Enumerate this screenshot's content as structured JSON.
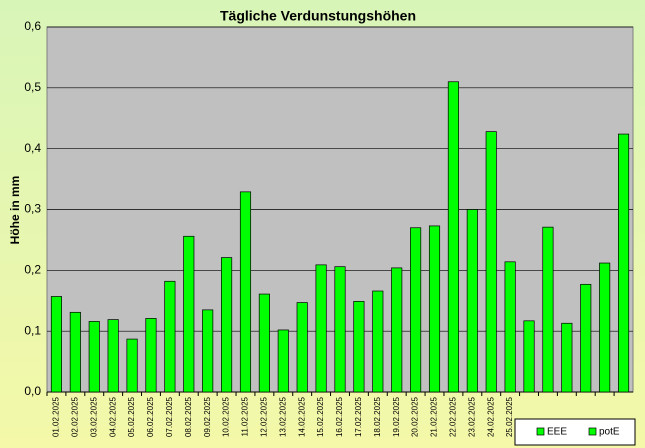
{
  "chart_data": {
    "type": "bar",
    "title": "Tägliche Verdunstungshöhen",
    "y_label": "Höhe in mm",
    "categories": [
      "01.02.2025",
      "02.02.2025",
      "03.02.2025",
      "04.02.2025",
      "05.02.2025",
      "06.02.2025",
      "07.02.2025",
      "08.02.2025",
      "09.02.2025",
      "10.02.2025",
      "11.02.2025",
      "12.02.2025",
      "13.02.2025",
      "14.02.2025",
      "15.02.2025",
      "16.02.2025",
      "17.02.2025",
      "18.02.2025",
      "19.02.2025",
      "20.02.2025",
      "21.02.2025",
      "22.02.2025",
      "23.02.2025",
      "24.02.2025",
      "25.02.2025",
      null,
      null,
      null,
      null,
      null,
      null
    ],
    "series": [
      {
        "name": "EEE",
        "color": "#00ff00",
        "values": [
          null,
          null,
          null,
          null,
          null,
          null,
          null,
          null,
          null,
          null,
          null,
          null,
          null,
          null,
          null,
          null,
          null,
          null,
          null,
          null,
          null,
          null,
          null,
          null,
          null,
          null,
          null,
          null,
          null,
          null,
          null
        ]
      },
      {
        "name": "potE",
        "color": "#00ff00",
        "values": [
          0.157,
          0.131,
          0.116,
          0.119,
          0.087,
          0.121,
          0.182,
          0.256,
          0.135,
          0.221,
          0.329,
          0.161,
          0.102,
          0.147,
          0.209,
          0.206,
          0.149,
          0.166,
          0.204,
          0.27,
          0.273,
          0.51,
          0.3,
          0.428,
          0.214,
          0.117,
          0.271,
          0.113,
          0.177,
          0.212,
          0.424
        ]
      }
    ],
    "ylim": [
      0,
      0.6
    ],
    "yticks": [
      {
        "value": 0,
        "label": "0,0"
      },
      {
        "value": 0.1,
        "label": "0,1"
      },
      {
        "value": 0.2,
        "label": "0,2"
      },
      {
        "value": 0.3,
        "label": "0,3"
      },
      {
        "value": 0.4,
        "label": "0,4"
      },
      {
        "value": 0.5,
        "label": "0,5"
      },
      {
        "value": 0.6,
        "label": "0,6"
      }
    ],
    "grid": true,
    "legend": "bottom-right"
  }
}
